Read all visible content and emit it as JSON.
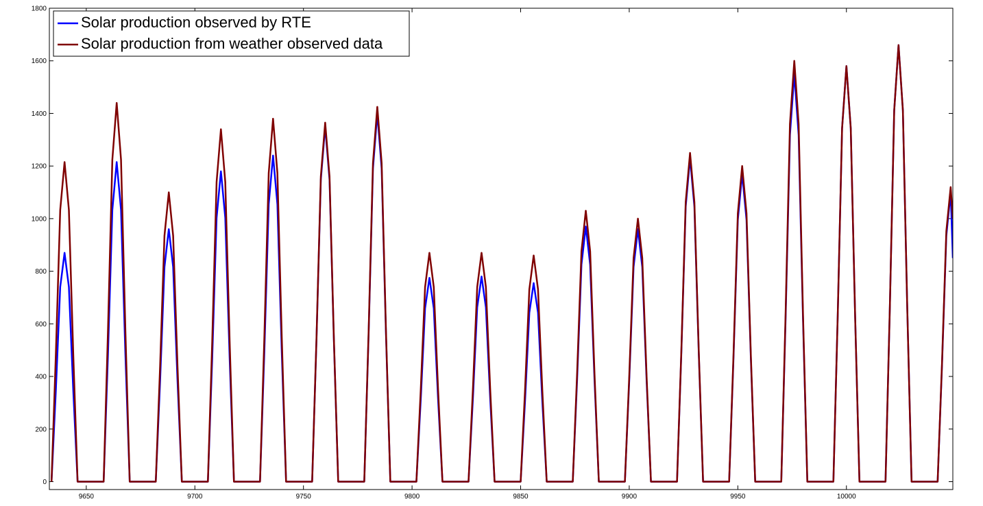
{
  "chart_data": {
    "type": "line",
    "x": [
      9634,
      9636,
      9638,
      9640,
      9642,
      9644,
      9646,
      9658,
      9660,
      9662,
      9664,
      9666,
      9668,
      9670,
      9682,
      9684,
      9686,
      9688,
      9690,
      9692,
      9694,
      9706,
      9708,
      9710,
      9712,
      9714,
      9716,
      9718,
      9730,
      9732,
      9734,
      9736,
      9738,
      9740,
      9742,
      9754,
      9756,
      9758,
      9760,
      9762,
      9764,
      9766,
      9778,
      9780,
      9782,
      9784,
      9786,
      9788,
      9790,
      9802,
      9804,
      9806,
      9808,
      9810,
      9812,
      9814,
      9826,
      9828,
      9830,
      9832,
      9834,
      9836,
      9838,
      9850,
      9852,
      9854,
      9856,
      9858,
      9860,
      9862,
      9874,
      9876,
      9878,
      9880,
      9882,
      9884,
      9886,
      9898,
      9900,
      9902,
      9904,
      9906,
      9908,
      9910,
      9922,
      9924,
      9926,
      9928,
      9930,
      9932,
      9934,
      9946,
      9948,
      9950,
      9952,
      9954,
      9956,
      9958,
      9970,
      9972,
      9974,
      9976,
      9978,
      9980,
      9982,
      9994,
      9996,
      9998,
      10000,
      10002,
      10004,
      10006,
      10018,
      10020,
      10022,
      10024,
      10026,
      10028,
      10030,
      10042,
      10044,
      10046,
      10048,
      10049
    ],
    "series": [
      {
        "name": "Solar production observed by RTE",
        "color": "#0000ff",
        "values": [
          0,
          348,
          740,
          870,
          740,
          348,
          0,
          0,
          486,
          1033,
          1215,
          1033,
          486,
          0,
          0,
          384,
          816,
          960,
          816,
          384,
          0,
          0,
          472,
          1003,
          1180,
          1003,
          472,
          0,
          0,
          496,
          1054,
          1240,
          1054,
          496,
          0,
          0,
          540,
          1148,
          1350,
          1148,
          540,
          0,
          0,
          560,
          1190,
          1400,
          1190,
          560,
          0,
          0,
          310,
          659,
          775,
          659,
          310,
          0,
          0,
          312,
          663,
          780,
          663,
          312,
          0,
          0,
          302,
          642,
          755,
          642,
          302,
          0,
          0,
          388,
          825,
          970,
          825,
          388,
          0,
          0,
          384,
          816,
          960,
          816,
          384,
          0,
          0,
          492,
          1046,
          1230,
          1046,
          492,
          0,
          0,
          468,
          995,
          1170,
          995,
          468,
          0,
          0,
          620,
          1318,
          1550,
          1318,
          620,
          0,
          0,
          632,
          1343,
          1580,
          1343,
          632,
          0,
          0,
          664,
          1411,
          1660,
          1411,
          664,
          0,
          0,
          440,
          935,
          1100,
          850
        ]
      },
      {
        "name": "Solar production from weather observed data",
        "color": "#7f0000",
        "values": [
          0,
          486,
          1033,
          1215,
          1033,
          486,
          0,
          0,
          576,
          1224,
          1440,
          1224,
          576,
          0,
          0,
          440,
          935,
          1100,
          935,
          440,
          0,
          0,
          536,
          1139,
          1340,
          1139,
          536,
          0,
          0,
          552,
          1173,
          1380,
          1173,
          552,
          0,
          0,
          546,
          1160,
          1365,
          1160,
          546,
          0,
          0,
          570,
          1211,
          1425,
          1211,
          570,
          0,
          0,
          348,
          740,
          870,
          740,
          348,
          0,
          0,
          348,
          740,
          870,
          740,
          348,
          0,
          0,
          344,
          731,
          860,
          731,
          344,
          0,
          0,
          412,
          876,
          1030,
          876,
          412,
          0,
          0,
          400,
          850,
          1000,
          850,
          400,
          0,
          0,
          500,
          1063,
          1250,
          1063,
          500,
          0,
          0,
          480,
          1020,
          1200,
          1020,
          480,
          0,
          0,
          640,
          1360,
          1600,
          1360,
          640,
          0,
          0,
          632,
          1343,
          1580,
          1343,
          632,
          0,
          0,
          664,
          1411,
          1660,
          1411,
          664,
          0,
          0,
          448,
          952,
          1120,
          1000
        ]
      }
    ],
    "xlim": [
      9633,
      10049
    ],
    "ylim": [
      -30,
      1800
    ],
    "xticks": [
      9650,
      9700,
      9750,
      9800,
      9850,
      9900,
      9950,
      10000
    ],
    "yticks": [
      0,
      200,
      400,
      600,
      800,
      1000,
      1200,
      1400,
      1600,
      1800
    ],
    "legend": "top-left"
  }
}
